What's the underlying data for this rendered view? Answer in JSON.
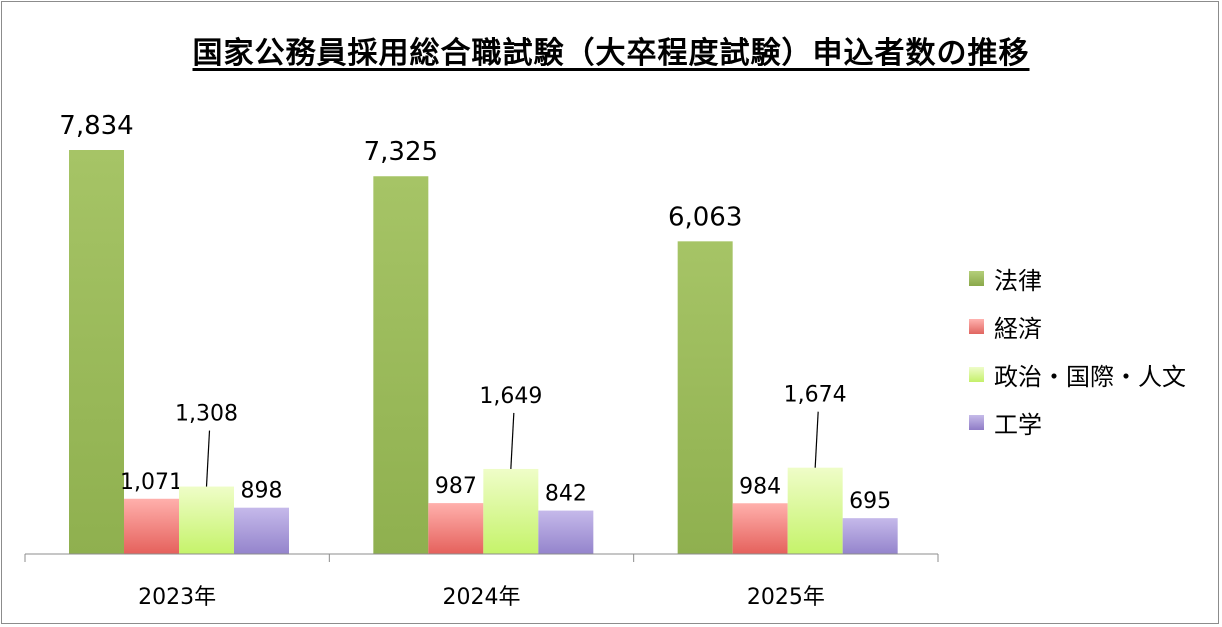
{
  "chart_data": {
    "type": "bar",
    "title": "国家公務員採用総合職試験（大卒程度試験）申込者数の推移",
    "categories": [
      "2023年",
      "2024年",
      "2025年"
    ],
    "series": [
      {
        "name": "法律",
        "color": "#9bbb59",
        "values": [
          7834,
          7325,
          6063
        ],
        "labels": [
          "7,834",
          "7,325",
          "6,063"
        ]
      },
      {
        "name": "経済",
        "color": "#f28e8a",
        "values": [
          1071,
          987,
          984
        ],
        "labels": [
          "1,071",
          "987",
          "984"
        ]
      },
      {
        "name": "政治・国際・人文",
        "color": "#d9f79a",
        "values": [
          1308,
          1649,
          1674
        ],
        "labels": [
          "1,308",
          "1,649",
          "1,674"
        ]
      },
      {
        "name": "工学",
        "color": "#a99ad6",
        "values": [
          898,
          842,
          695
        ],
        "labels": [
          "898",
          "842",
          "695"
        ]
      }
    ],
    "ylim": [
      0,
      8000
    ],
    "grid": false,
    "legend": "right"
  }
}
